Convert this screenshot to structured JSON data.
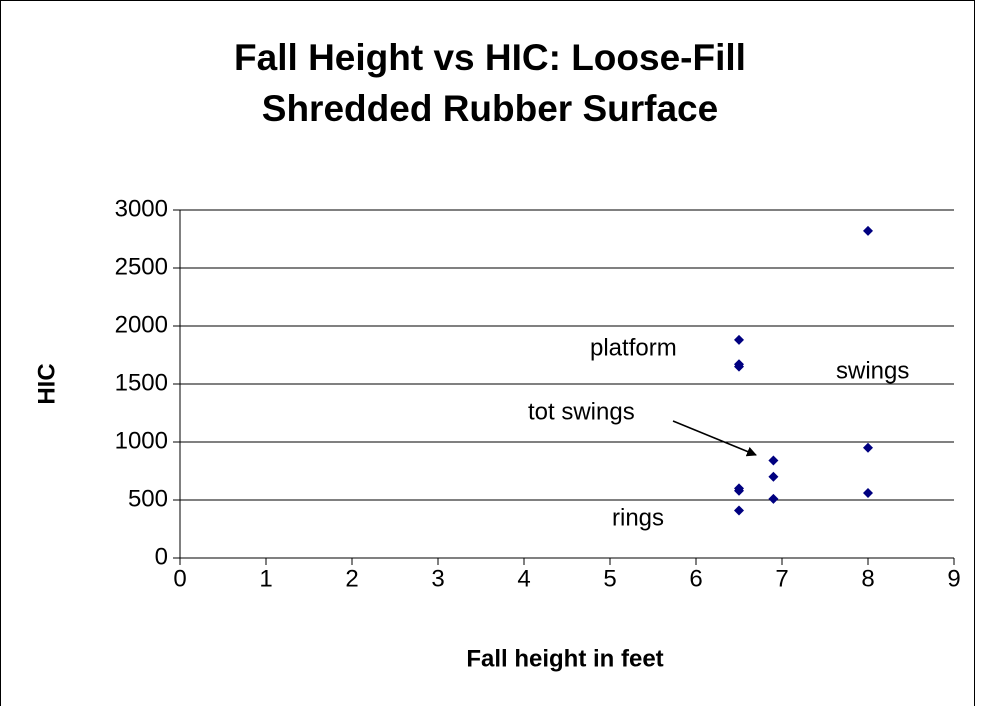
{
  "chart_data": {
    "type": "scatter",
    "title": [
      "Fall Height vs HIC: Loose-Fill",
      "Shredded Rubber Surface"
    ],
    "x_label": "Fall height in feet",
    "y_label": "HIC",
    "series": [
      {
        "name": "HIC",
        "color": "#000080",
        "x": [
          8,
          6.5,
          6.5,
          6.5,
          8,
          6.9,
          6.9,
          6.5,
          6.5,
          8,
          6.9,
          6.5
        ],
        "values": [
          2820,
          1880,
          1670,
          1650,
          950,
          840,
          700,
          600,
          580,
          560,
          510,
          410
        ]
      }
    ],
    "xlim": [
      0,
      9
    ],
    "xticks": [
      0,
      1,
      2,
      3,
      4,
      5,
      6,
      7,
      8,
      9
    ],
    "ylim": [
      0,
      3000
    ],
    "yticks": [
      0,
      500,
      1000,
      1500,
      2000,
      2500,
      3000
    ],
    "grid": true,
    "annotations": [
      "platform",
      "swings",
      "tot swings",
      "rings"
    ]
  }
}
